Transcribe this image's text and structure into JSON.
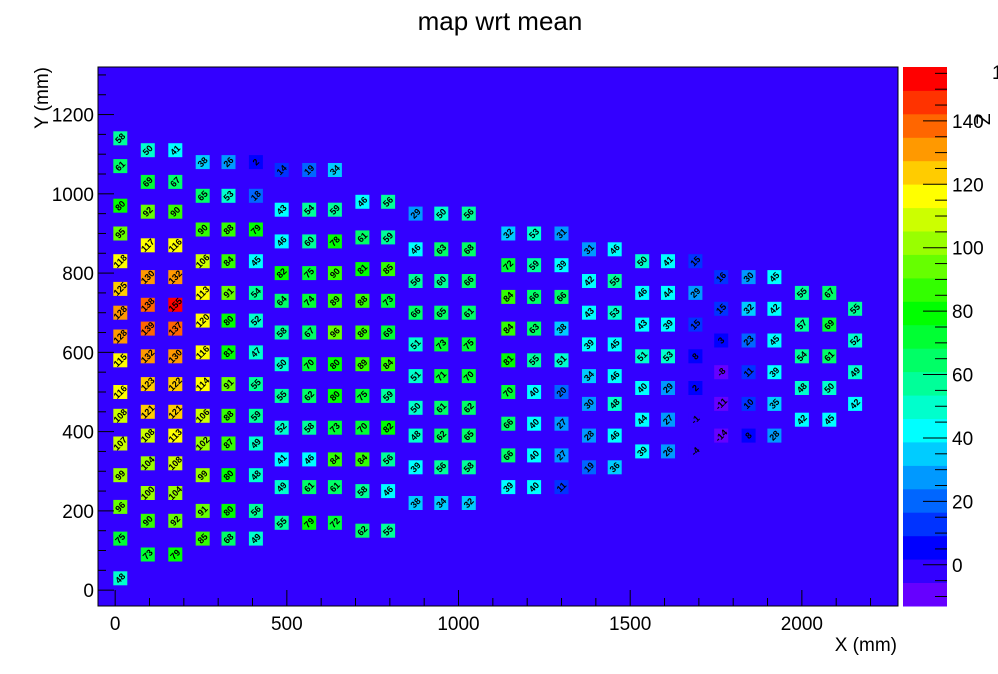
{
  "chart_data": {
    "type": "heatmap",
    "title": "map wrt mean",
    "xlabel": "X (mm)",
    "ylabel": "Y (mm)",
    "zlabel": "Z",
    "xlim": [
      -50,
      2280
    ],
    "ylim": [
      -40,
      1320
    ],
    "zlim": [
      -13,
      157
    ],
    "x_ticks": [
      0,
      500,
      1000,
      1500,
      2000
    ],
    "y_ticks": [
      0,
      200,
      400,
      600,
      800,
      1000,
      1200
    ],
    "z_ticks": [
      0,
      20,
      40,
      60,
      80,
      100,
      120,
      140
    ],
    "z_top_label": "1",
    "background_color": "#3300ff",
    "palette": [
      "#6600ff",
      "#3300ff",
      "#0000ff",
      "#0033ff",
      "#0066ff",
      "#0099ff",
      "#00ccff",
      "#00ffff",
      "#00ffcc",
      "#00ff99",
      "#00ff66",
      "#00ff33",
      "#00ff00",
      "#33ff00",
      "#66ff00",
      "#99ff00",
      "#ccff00",
      "#ffff00",
      "#ffcc00",
      "#ff9900",
      "#ff6600",
      "#ff3300",
      "#ff0000"
    ],
    "columns": [
      {
        "x": 15,
        "cells": [
          [
            1140,
            58
          ],
          [
            1070,
            61
          ],
          [
            970,
            80
          ],
          [
            900,
            95
          ],
          [
            830,
            118
          ],
          [
            760,
            125
          ],
          [
            700,
            128
          ],
          [
            640,
            128
          ],
          [
            580,
            115
          ],
          [
            500,
            116
          ],
          [
            440,
            108
          ],
          [
            370,
            107
          ],
          [
            290,
            99
          ],
          [
            210,
            96
          ],
          [
            130,
            75
          ],
          [
            30,
            48
          ]
        ]
      },
      {
        "x": 95,
        "cells": [
          [
            1110,
            50
          ],
          [
            1030,
            69
          ],
          [
            955,
            92
          ],
          [
            870,
            117
          ],
          [
            790,
            130
          ],
          [
            720,
            138
          ],
          [
            660,
            139
          ],
          [
            590,
            132
          ],
          [
            520,
            123
          ],
          [
            450,
            121
          ],
          [
            390,
            108
          ],
          [
            320,
            104
          ],
          [
            245,
            100
          ],
          [
            175,
            90
          ],
          [
            90,
            73
          ]
        ]
      },
      {
        "x": 175,
        "cells": [
          [
            1110,
            41
          ],
          [
            1030,
            67
          ],
          [
            955,
            90
          ],
          [
            870,
            116
          ],
          [
            790,
            132
          ],
          [
            720,
            155
          ],
          [
            660,
            137
          ],
          [
            590,
            130
          ],
          [
            520,
            122
          ],
          [
            450,
            121
          ],
          [
            390,
            113
          ],
          [
            320,
            108
          ],
          [
            245,
            104
          ],
          [
            175,
            92
          ],
          [
            90,
            79
          ]
        ]
      },
      {
        "x": 255,
        "cells": [
          [
            1080,
            38
          ],
          [
            995,
            65
          ],
          [
            910,
            90
          ],
          [
            830,
            106
          ],
          [
            750,
            113
          ],
          [
            680,
            120
          ],
          [
            600,
            116
          ],
          [
            520,
            114
          ],
          [
            440,
            106
          ],
          [
            370,
            102
          ],
          [
            290,
            99
          ],
          [
            200,
            91
          ],
          [
            130,
            85
          ]
        ]
      },
      {
        "x": 330,
        "cells": [
          [
            1080,
            26
          ],
          [
            995,
            53
          ],
          [
            910,
            88
          ],
          [
            830,
            84
          ],
          [
            750,
            91
          ],
          [
            680,
            80
          ],
          [
            600,
            81
          ],
          [
            520,
            91
          ],
          [
            440,
            88
          ],
          [
            370,
            87
          ],
          [
            290,
            80
          ],
          [
            200,
            80
          ],
          [
            130,
            68
          ]
        ]
      },
      {
        "x": 410,
        "cells": [
          [
            1080,
            2
          ],
          [
            995,
            18
          ],
          [
            910,
            79
          ],
          [
            830,
            45
          ],
          [
            750,
            54
          ],
          [
            680,
            52
          ],
          [
            600,
            47
          ],
          [
            520,
            55
          ],
          [
            440,
            59
          ],
          [
            370,
            49
          ],
          [
            290,
            48
          ],
          [
            200,
            56
          ],
          [
            130,
            49
          ]
        ]
      },
      {
        "x": 485,
        "cells": [
          [
            1060,
            14
          ],
          [
            960,
            43
          ],
          [
            880,
            46
          ],
          [
            800,
            82
          ],
          [
            730,
            64
          ],
          [
            650,
            58
          ],
          [
            570,
            50
          ],
          [
            490,
            55
          ],
          [
            410,
            52
          ],
          [
            330,
            41
          ],
          [
            260,
            49
          ],
          [
            170,
            55
          ]
        ]
      },
      {
        "x": 565,
        "cells": [
          [
            1060,
            19
          ],
          [
            960,
            54
          ],
          [
            880,
            60
          ],
          [
            800,
            75
          ],
          [
            730,
            74
          ],
          [
            650,
            67
          ],
          [
            570,
            70
          ],
          [
            490,
            62
          ],
          [
            410,
            58
          ],
          [
            330,
            46
          ],
          [
            260,
            61
          ],
          [
            170,
            79
          ]
        ]
      },
      {
        "x": 640,
        "cells": [
          [
            1060,
            34
          ],
          [
            960,
            59
          ],
          [
            880,
            78
          ],
          [
            800,
            90
          ],
          [
            730,
            89
          ],
          [
            650,
            96
          ],
          [
            570,
            80
          ],
          [
            490,
            80
          ],
          [
            410,
            73
          ],
          [
            330,
            84
          ],
          [
            260,
            61
          ],
          [
            170,
            72
          ]
        ]
      },
      {
        "x": 720,
        "cells": [
          [
            980,
            46
          ],
          [
            890,
            61
          ],
          [
            810,
            81
          ],
          [
            730,
            88
          ],
          [
            650,
            86
          ],
          [
            570,
            89
          ],
          [
            490,
            75
          ],
          [
            410,
            70
          ],
          [
            330,
            84
          ],
          [
            250,
            58
          ],
          [
            150,
            62
          ]
        ]
      },
      {
        "x": 795,
        "cells": [
          [
            980,
            56
          ],
          [
            890,
            59
          ],
          [
            810,
            85
          ],
          [
            730,
            73
          ],
          [
            650,
            69
          ],
          [
            570,
            84
          ],
          [
            490,
            59
          ],
          [
            410,
            82
          ],
          [
            330,
            56
          ],
          [
            250,
            46
          ],
          [
            150,
            55
          ]
        ]
      },
      {
        "x": 875,
        "cells": [
          [
            950,
            29
          ],
          [
            860,
            46
          ],
          [
            780,
            56
          ],
          [
            700,
            66
          ],
          [
            620,
            51
          ],
          [
            540,
            51
          ],
          [
            460,
            50
          ],
          [
            390,
            48
          ],
          [
            310,
            39
          ],
          [
            220,
            38
          ]
        ]
      },
      {
        "x": 950,
        "cells": [
          [
            950,
            50
          ],
          [
            860,
            63
          ],
          [
            780,
            60
          ],
          [
            700,
            65
          ],
          [
            620,
            73
          ],
          [
            540,
            71
          ],
          [
            460,
            61
          ],
          [
            390,
            62
          ],
          [
            310,
            56
          ],
          [
            220,
            34
          ]
        ]
      },
      {
        "x": 1030,
        "cells": [
          [
            950,
            56
          ],
          [
            860,
            68
          ],
          [
            780,
            66
          ],
          [
            700,
            61
          ],
          [
            620,
            75
          ],
          [
            540,
            70
          ],
          [
            460,
            62
          ],
          [
            390,
            65
          ],
          [
            310,
            58
          ],
          [
            220,
            32
          ]
        ]
      },
      {
        "x": 1145,
        "cells": [
          [
            900,
            32
          ],
          [
            820,
            72
          ],
          [
            740,
            84
          ],
          [
            660,
            84
          ],
          [
            580,
            81
          ],
          [
            500,
            70
          ],
          [
            420,
            66
          ],
          [
            340,
            66
          ],
          [
            260,
            39
          ]
        ]
      },
      {
        "x": 1220,
        "cells": [
          [
            900,
            53
          ],
          [
            820,
            59
          ],
          [
            740,
            66
          ],
          [
            660,
            63
          ],
          [
            580,
            55
          ],
          [
            500,
            40
          ],
          [
            420,
            40
          ],
          [
            340,
            40
          ],
          [
            260,
            40
          ]
        ]
      },
      {
        "x": 1300,
        "cells": [
          [
            900,
            31
          ],
          [
            820,
            39
          ],
          [
            740,
            66
          ],
          [
            660,
            38
          ],
          [
            580,
            51
          ],
          [
            500,
            20
          ],
          [
            420,
            27
          ],
          [
            340,
            27
          ],
          [
            260,
            11
          ]
        ]
      },
      {
        "x": 1380,
        "cells": [
          [
            860,
            31
          ],
          [
            780,
            42
          ],
          [
            700,
            43
          ],
          [
            620,
            39
          ],
          [
            540,
            34
          ],
          [
            470,
            30
          ],
          [
            390,
            28
          ],
          [
            310,
            19
          ]
        ]
      },
      {
        "x": 1455,
        "cells": [
          [
            860,
            46
          ],
          [
            780,
            55
          ],
          [
            700,
            53
          ],
          [
            620,
            45
          ],
          [
            540,
            46
          ],
          [
            470,
            48
          ],
          [
            390,
            46
          ],
          [
            310,
            36
          ]
        ]
      },
      {
        "x": 1535,
        "cells": [
          [
            830,
            50
          ],
          [
            750,
            46
          ],
          [
            670,
            43
          ],
          [
            590,
            51
          ],
          [
            510,
            40
          ],
          [
            430,
            44
          ],
          [
            350,
            39
          ]
        ]
      },
      {
        "x": 1610,
        "cells": [
          [
            830,
            41
          ],
          [
            750,
            44
          ],
          [
            670,
            39
          ],
          [
            590,
            53
          ],
          [
            510,
            29
          ],
          [
            430,
            27
          ],
          [
            350,
            26
          ]
        ]
      },
      {
        "x": 1690,
        "cells": [
          [
            830,
            15
          ],
          [
            750,
            29
          ],
          [
            670,
            15
          ],
          [
            590,
            8
          ],
          [
            510,
            2
          ],
          [
            430,
            -1
          ],
          [
            350,
            -4
          ]
        ]
      },
      {
        "x": 1765,
        "cells": [
          [
            790,
            16
          ],
          [
            710,
            15
          ],
          [
            630,
            3
          ],
          [
            550,
            -8
          ],
          [
            470,
            -11
          ],
          [
            390,
            -14
          ]
        ]
      },
      {
        "x": 1845,
        "cells": [
          [
            790,
            30
          ],
          [
            710,
            32
          ],
          [
            630,
            23
          ],
          [
            550,
            11
          ],
          [
            470,
            10
          ],
          [
            390,
            8
          ]
        ]
      },
      {
        "x": 1920,
        "cells": [
          [
            790,
            45
          ],
          [
            710,
            42
          ],
          [
            630,
            45
          ],
          [
            550,
            39
          ],
          [
            470,
            35
          ],
          [
            390,
            28
          ]
        ]
      },
      {
        "x": 2000,
        "cells": [
          [
            750,
            55
          ],
          [
            670,
            57
          ],
          [
            590,
            54
          ],
          [
            510,
            48
          ],
          [
            430,
            42
          ]
        ]
      },
      {
        "x": 2080,
        "cells": [
          [
            750,
            67
          ],
          [
            670,
            69
          ],
          [
            590,
            61
          ],
          [
            510,
            50
          ],
          [
            430,
            45
          ]
        ]
      },
      {
        "x": 2155,
        "cells": [
          [
            710,
            55
          ],
          [
            630,
            52
          ],
          [
            550,
            49
          ],
          [
            470,
            42
          ]
        ]
      }
    ]
  }
}
